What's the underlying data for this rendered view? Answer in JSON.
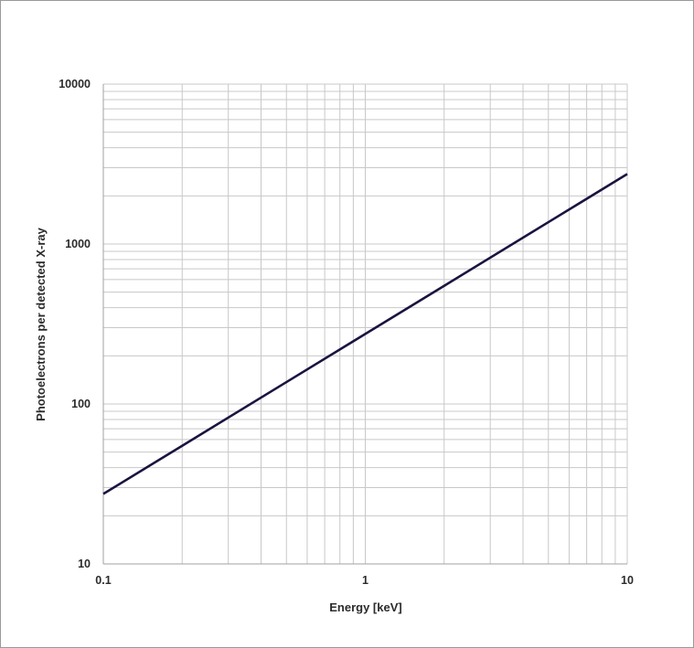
{
  "chart_data": {
    "type": "line",
    "title": "",
    "xlabel": "Energy [keV]",
    "ylabel": "Photoelectrons per detected X-ray",
    "x_scale": "log",
    "y_scale": "log",
    "xlim": [
      0.1,
      10
    ],
    "ylim": [
      10,
      10000
    ],
    "x_ticks": [
      {
        "value": 0.1,
        "label": "0.1"
      },
      {
        "value": 1,
        "label": "1"
      },
      {
        "value": 10,
        "label": "10"
      }
    ],
    "y_ticks": [
      {
        "value": 10,
        "label": "10"
      },
      {
        "value": 100,
        "label": "100"
      },
      {
        "value": 1000,
        "label": "1000"
      },
      {
        "value": 10000,
        "label": "10000"
      }
    ],
    "grid": true,
    "legend": "none",
    "series": [
      {
        "x": [
          0.1,
          0.2,
          0.5,
          1,
          2,
          5,
          10
        ],
        "y": [
          27.4,
          54.8,
          137,
          274,
          548,
          1370,
          2740
        ],
        "color": "#1a1440"
      }
    ],
    "colors": {
      "line": "#1a1440",
      "grid": "#c8c8c8",
      "axis": "#a0a0a0",
      "frame": "#9a9a9a"
    }
  }
}
